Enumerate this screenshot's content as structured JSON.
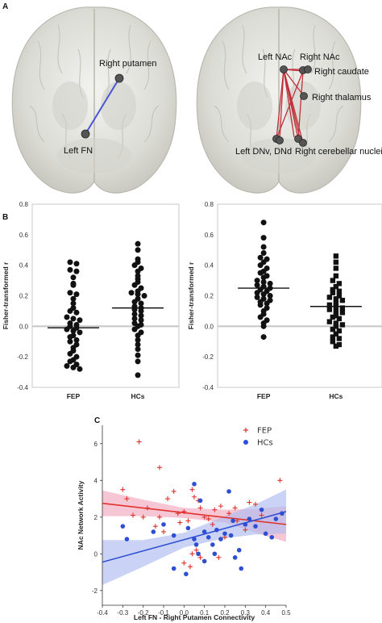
{
  "panels": {
    "a_letter": "A",
    "b_letter": "B",
    "c_letter": "C"
  },
  "brain_left": {
    "labels": [
      "Right putamen",
      "Left FN"
    ],
    "connection_color": "#4a55d6"
  },
  "brain_right": {
    "labels": [
      "Left NAc",
      "Right NAc",
      "Right caudate",
      "Right thalamus",
      "Left DNv, DNd",
      "Right cerebellar nuclei"
    ],
    "connection_color": "#c0303a"
  },
  "colors": {
    "fep": "#e0322c",
    "hc": "#2f4fd3",
    "fep_band": "#f2a8bf",
    "hc_band": "#aebcf0",
    "zero_line": "#c8c8c8"
  },
  "chart_data": [
    {
      "type": "scatter",
      "subtype": "dot-strip",
      "ylabel": "Fisher-transformed r",
      "categories": [
        "FEP",
        "HCs"
      ],
      "ylim": [
        -0.4,
        0.8
      ],
      "yticks": [
        "0.8",
        "0.6",
        "0.4",
        "0.2",
        "0.0",
        "-0.2",
        "-0.4"
      ],
      "marker": "circle",
      "series": [
        {
          "category": "FEP",
          "mean": -0.01,
          "values": [
            0.42,
            0.41,
            0.37,
            0.36,
            0.32,
            0.28,
            0.27,
            0.22,
            0.21,
            0.18,
            0.15,
            0.12,
            0.1,
            0.09,
            0.06,
            0.05,
            0.04,
            0.02,
            0.01,
            0.0,
            -0.01,
            -0.02,
            -0.03,
            -0.04,
            -0.06,
            -0.07,
            -0.09,
            -0.1,
            -0.12,
            -0.14,
            -0.16,
            -0.18,
            -0.2,
            -0.22,
            -0.23,
            -0.25,
            -0.26,
            -0.27,
            -0.28
          ]
        },
        {
          "category": "HCs",
          "mean": 0.12,
          "values": [
            0.54,
            0.5,
            0.44,
            0.42,
            0.4,
            0.38,
            0.36,
            0.33,
            0.31,
            0.29,
            0.27,
            0.25,
            0.23,
            0.22,
            0.21,
            0.2,
            0.18,
            0.16,
            0.15,
            0.13,
            0.12,
            0.11,
            0.1,
            0.08,
            0.07,
            0.05,
            0.04,
            0.02,
            0.01,
            0.0,
            -0.02,
            -0.04,
            -0.06,
            -0.09,
            -0.12,
            -0.15,
            -0.19,
            -0.23,
            -0.32
          ]
        }
      ]
    },
    {
      "type": "scatter",
      "subtype": "dot-strip",
      "ylabel": "Fisher-transformed r",
      "categories": [
        "FEP",
        "HCs"
      ],
      "ylim": [
        -0.4,
        0.8
      ],
      "yticks": [
        "0.8",
        "0.6",
        "0.4",
        "0.2",
        "0.0",
        "-0.2",
        "-0.4"
      ],
      "series": [
        {
          "category": "FEP",
          "marker": "circle",
          "mean": 0.25,
          "values": [
            0.68,
            0.58,
            0.52,
            0.48,
            0.45,
            0.44,
            0.42,
            0.4,
            0.38,
            0.36,
            0.35,
            0.33,
            0.32,
            0.3,
            0.29,
            0.28,
            0.27,
            0.26,
            0.25,
            0.24,
            0.23,
            0.22,
            0.21,
            0.2,
            0.19,
            0.18,
            0.17,
            0.16,
            0.15,
            0.14,
            0.12,
            0.1,
            0.08,
            0.06,
            0.04,
            0.02,
            0.0,
            -0.07
          ]
        },
        {
          "category": "HCs",
          "marker": "square",
          "mean": 0.13,
          "values": [
            0.46,
            0.42,
            0.38,
            0.33,
            0.3,
            0.28,
            0.26,
            0.24,
            0.23,
            0.22,
            0.2,
            0.19,
            0.18,
            0.17,
            0.15,
            0.14,
            0.13,
            0.12,
            0.11,
            0.1,
            0.09,
            0.07,
            0.06,
            0.05,
            0.03,
            0.02,
            0.01,
            0.0,
            -0.02,
            -0.03,
            -0.05,
            -0.07,
            -0.08,
            -0.1,
            -0.12,
            -0.13
          ]
        }
      ]
    },
    {
      "type": "scatter",
      "xlabel": "Left FN - Right Putamen Connectivity",
      "ylabel": "NAc Network Activity",
      "xlim": [
        -0.4,
        0.5
      ],
      "ylim": [
        -2.8,
        7.0
      ],
      "xticks": [
        "-0.4",
        "-0.3",
        "-0.2",
        "-0.1",
        "0.0",
        "0.1",
        "0.2",
        "0.3",
        "0.4",
        "0.5"
      ],
      "yticks": [
        "6",
        "4",
        "2",
        "0",
        "-2"
      ],
      "grid": false,
      "legend": "top-right",
      "series": [
        {
          "name": "FEP",
          "marker": "plus",
          "points": [
            [
              -0.22,
              6.1
            ],
            [
              -0.3,
              3.5
            ],
            [
              -0.12,
              4.7
            ],
            [
              -0.12,
              2.0
            ],
            [
              -0.05,
              3.4
            ],
            [
              -0.08,
              3.0
            ],
            [
              -0.18,
              2.5
            ],
            [
              -0.2,
              2.0
            ],
            [
              -0.25,
              2.1
            ],
            [
              -0.28,
              3.0
            ],
            [
              -0.14,
              1.5
            ],
            [
              -0.1,
              1.2
            ],
            [
              -0.03,
              2.2
            ],
            [
              0.0,
              2.3
            ],
            [
              0.02,
              1.8
            ],
            [
              0.04,
              3.5
            ],
            [
              0.05,
              3.1
            ],
            [
              0.07,
              2.9
            ],
            [
              0.08,
              2.5
            ],
            [
              0.1,
              2.0
            ],
            [
              0.12,
              1.9
            ],
            [
              0.14,
              1.6
            ],
            [
              0.15,
              2.4
            ],
            [
              0.18,
              2.6
            ],
            [
              0.22,
              2.2
            ],
            [
              0.25,
              2.5
            ],
            [
              0.3,
              1.3
            ],
            [
              0.32,
              2.8
            ],
            [
              0.35,
              2.7
            ],
            [
              0.38,
              2.1
            ],
            [
              0.47,
              4.0
            ],
            [
              0.04,
              0.0
            ],
            [
              0.06,
              0.2
            ],
            [
              0.0,
              -0.5
            ],
            [
              0.03,
              -0.7
            ],
            [
              0.08,
              -0.2
            ],
            [
              0.17,
              -0.2
            ],
            [
              -0.02,
              1.7
            ],
            [
              0.2,
              0.9
            ],
            [
              0.26,
              1.8
            ]
          ],
          "trend": [
            [
              -0.4,
              2.75
            ],
            [
              0.5,
              1.6
            ]
          ]
        },
        {
          "name": "HCs",
          "marker": "circle",
          "points": [
            [
              -0.3,
              1.5
            ],
            [
              -0.15,
              1.2
            ],
            [
              -0.1,
              1.6
            ],
            [
              -0.05,
              1.0
            ],
            [
              0.05,
              3.8
            ],
            [
              0.05,
              0.8
            ],
            [
              0.06,
              0.5
            ],
            [
              0.07,
              0.0
            ],
            [
              0.08,
              2.9
            ],
            [
              0.1,
              1.2
            ],
            [
              0.12,
              0.9
            ],
            [
              0.14,
              0.5
            ],
            [
              0.15,
              0.0
            ],
            [
              0.18,
              0.8
            ],
            [
              0.2,
              1.1
            ],
            [
              0.22,
              3.4
            ],
            [
              0.23,
              1.0
            ],
            [
              0.25,
              -0.2
            ],
            [
              0.27,
              0.2
            ],
            [
              0.28,
              -0.8
            ],
            [
              0.3,
              1.6
            ],
            [
              0.32,
              1.9
            ],
            [
              0.35,
              1.5
            ],
            [
              0.38,
              2.4
            ],
            [
              0.4,
              1.1
            ],
            [
              0.45,
              1.9
            ],
            [
              0.48,
              2.2
            ],
            [
              -0.28,
              0.8
            ],
            [
              -0.05,
              -0.8
            ],
            [
              0.01,
              -1.1
            ],
            [
              0.1,
              -0.4
            ],
            [
              0.02,
              1.4
            ],
            [
              0.16,
              1.3
            ],
            [
              0.24,
              1.8
            ],
            [
              0.43,
              0.9
            ]
          ],
          "trend": [
            [
              -0.4,
              -0.45
            ],
            [
              0.5,
              2.3
            ]
          ]
        }
      ]
    }
  ]
}
